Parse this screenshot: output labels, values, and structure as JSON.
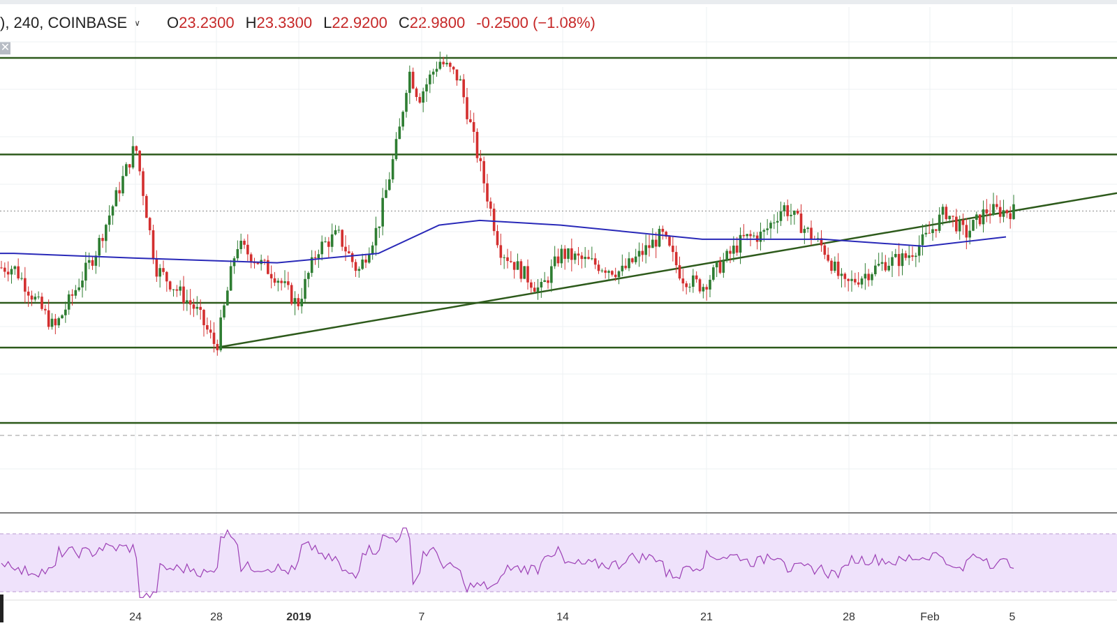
{
  "legend": {
    "symbol": "), 240, COINBASE",
    "open_label": "O",
    "open": "23.2300",
    "high_label": "H",
    "high": "23.3300",
    "low_label": "L",
    "low": "22.9200",
    "close_label": "C",
    "close": "22.9800",
    "change": "-0.2500 (−1.08%)",
    "change_color": "#c62828"
  },
  "icons": {
    "dropdown": "chevron-down-icon",
    "close": "close-icon"
  },
  "colors": {
    "up": "#2e7d32",
    "down": "#d32f2f",
    "sma": "#2929b8",
    "levels": "#2d5a1b",
    "rsi_line": "#9c3fb5",
    "rsi_band": "#efe2fb",
    "grid": "#eef0f3"
  },
  "chart_data": [
    {
      "type": "candlestick",
      "interval": "240",
      "exchange": "COINBASE",
      "x_ticks": [
        "24",
        "28",
        "2019",
        "7",
        "14",
        "21",
        "28",
        "Feb",
        "5"
      ],
      "y_range_approx": [
        18.0,
        27.0
      ],
      "horizontal_levels": [
        26.75,
        24.7,
        21.55,
        20.6,
        19.0
      ],
      "trendline": {
        "from": [
          "Dec 28",
          20.6
        ],
        "to": [
          "Feb 6",
          23.55
        ]
      },
      "moving_average": "blue line",
      "price_points": [
        [
          "Dec 18",
          22.3
        ],
        [
          "Dec 20",
          21.0
        ],
        [
          "Dec 22",
          22.6
        ],
        [
          "Dec 24",
          24.9
        ],
        [
          "Dec 25",
          22.3
        ],
        [
          "Dec 27",
          21.4
        ],
        [
          "Dec 28",
          20.6
        ],
        [
          "Dec 29",
          22.8
        ],
        [
          "Dec 31",
          22.1
        ],
        [
          "Jan 1",
          21.5
        ],
        [
          "Jan 2",
          22.7
        ],
        [
          "Jan 3",
          23.0
        ],
        [
          "Jan 4",
          22.2
        ],
        [
          "Jan 5",
          23.2
        ],
        [
          "Jan 6",
          25.1
        ],
        [
          "Jan 6b",
          26.5
        ],
        [
          "Jan 7",
          25.9
        ],
        [
          "Jan 8",
          26.7
        ],
        [
          "Jan 9",
          26.3
        ],
        [
          "Jan 10",
          24.5
        ],
        [
          "Jan 11",
          22.7
        ],
        [
          "Jan 13",
          21.8
        ],
        [
          "Jan 14",
          22.6
        ],
        [
          "Jan 17",
          22.2
        ],
        [
          "Jan 19",
          23.0
        ],
        [
          "Jan 20",
          22.1
        ],
        [
          "Jan 21",
          21.9
        ],
        [
          "Jan 23",
          22.9
        ],
        [
          "Jan 24",
          23.0
        ],
        [
          "Jan 25",
          23.6
        ],
        [
          "Jan 27",
          22.7
        ],
        [
          "Jan 28",
          21.9
        ],
        [
          "Jan 30",
          22.4
        ],
        [
          "Jan 31",
          22.5
        ],
        [
          "Feb 1",
          22.9
        ],
        [
          "Feb 2",
          23.5
        ],
        [
          "Feb 3",
          23.0
        ],
        [
          "Feb 4",
          23.5
        ],
        [
          "Feb 5",
          23.5
        ]
      ],
      "sma_points": [
        [
          "Dec 18",
          22.6
        ],
        [
          "Dec 24",
          22.5
        ],
        [
          "Dec 31",
          22.4
        ],
        [
          "Jan 5",
          22.6
        ],
        [
          "Jan 8",
          23.2
        ],
        [
          "Jan 10",
          23.3
        ],
        [
          "Jan 14",
          23.2
        ],
        [
          "Jan 21",
          22.9
        ],
        [
          "Jan 27",
          22.9
        ],
        [
          "Feb 1",
          22.75
        ],
        [
          "Feb 5",
          22.95
        ]
      ]
    },
    {
      "type": "line",
      "indicator": "RSI",
      "band": [
        30,
        70
      ],
      "y_range": [
        20,
        80
      ]
    }
  ]
}
